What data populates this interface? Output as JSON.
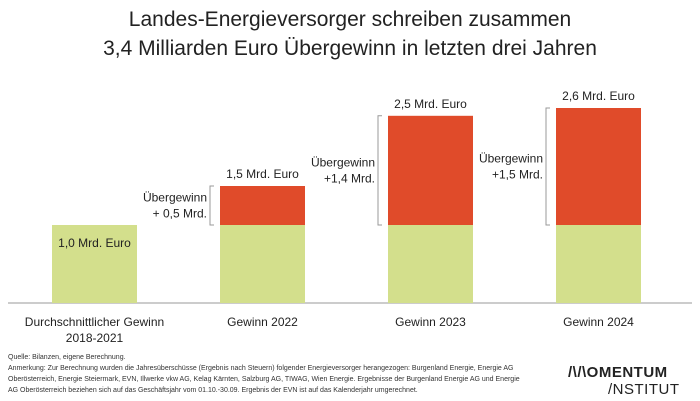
{
  "chart_data": {
    "type": "bar",
    "stacked": true,
    "title": "Landes-Energieversorger schreiben zusammen",
    "subtitle": "3,4 Milliarden Euro Übergewinn in letzten drei Jahren",
    "categories": [
      "Durchschnittlicher Gewinn 2018-2021",
      "Gewinn 2022",
      "Gewinn 2023",
      "Gewinn 2024"
    ],
    "category_lines": [
      [
        "Durchschnittlicher Gewinn",
        "2018-2021"
      ],
      [
        "Gewinn 2022"
      ],
      [
        "Gewinn 2023"
      ],
      [
        "Gewinn 2024"
      ]
    ],
    "series": [
      {
        "name": "Gewinn",
        "color": "#d3df8c",
        "values": [
          1.0,
          1.0,
          1.0,
          1.0
        ]
      },
      {
        "name": "Übergewinn",
        "color": "#e04b2a",
        "values": [
          0,
          0.5,
          1.4,
          1.5
        ]
      }
    ],
    "total_labels": [
      "1,0 Mrd. Euro",
      "1,5 Mrd. Euro",
      "2,5 Mrd. Euro",
      "2,6 Mrd. Euro"
    ],
    "excess_labels": [
      null,
      [
        "Übergewinn",
        "+ 0,5 Mrd."
      ],
      [
        "Übergewinn",
        "+1,4 Mrd."
      ],
      [
        "Übergewinn",
        "+1,5 Mrd."
      ]
    ],
    "ylim": [
      0,
      2.7
    ],
    "grid": false
  },
  "footer": {
    "source": "Quelle: Bilanzen, eigene Berechnung.",
    "note": "Anmerkung: Zur Berechnung wurden die Jahresüberschüsse (Ergebnis nach Steuern) folgender Energieversorger herangezogen: Burgenland Energie, Energie AG Oberösterreich, Energie Steiermark, EVN, Illwerke vkw AG, Kelag Kärnten, Salzburg AG, TIWAG, Wien Energie. Ergebnisse der Burgenland Energie AG und Energie AG Oberösterreich beziehen sich auf das Geschäftsjahr vom 01.10.-30.09. Ergebnis der EVN ist auf das Kalenderjahr umgerechnet."
  },
  "logo": {
    "line1": "/\\/\\OMENTUM",
    "line2": "/NSTITUT"
  }
}
